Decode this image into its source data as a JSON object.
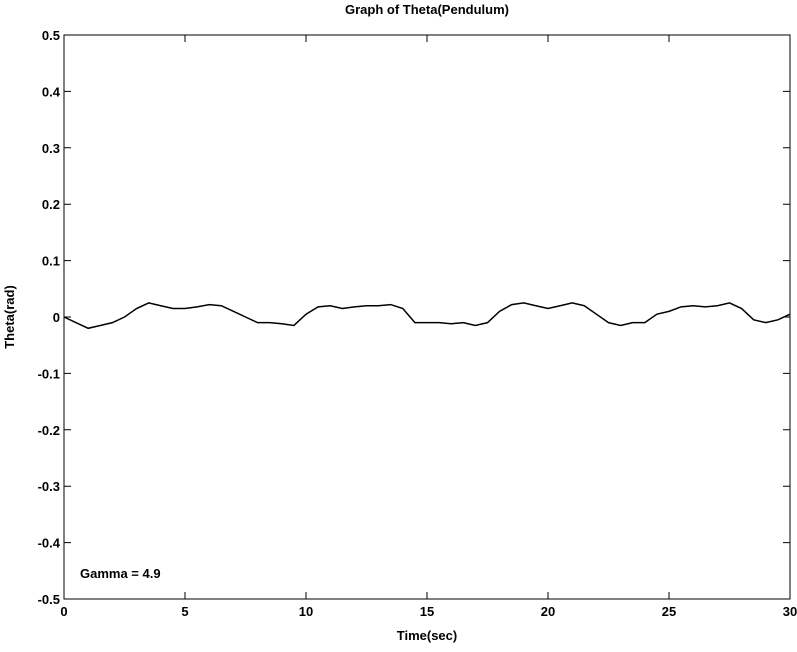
{
  "chart_data": {
    "type": "line",
    "title": "Graph of Theta(Pendulum)",
    "x_label": "Time(sec)",
    "y_label": "Theta(rad)",
    "annotation": "Gamma = 4.9",
    "x": [
      0,
      0.5,
      1,
      1.5,
      2,
      2.5,
      3,
      3.5,
      4,
      4.5,
      5,
      5.5,
      6,
      6.5,
      7,
      7.5,
      8,
      8.5,
      9,
      9.5,
      10,
      10.5,
      11,
      11.5,
      12,
      12.5,
      13,
      13.5,
      14,
      14.5,
      15,
      15.5,
      16,
      16.5,
      17,
      17.5,
      18,
      18.5,
      19,
      19.5,
      20,
      20.5,
      21,
      21.5,
      22,
      22.5,
      23,
      23.5,
      24,
      24.5,
      25,
      25.5,
      26,
      26.5,
      27,
      27.5,
      28,
      28.5,
      29,
      29.5,
      30
    ],
    "values": [
      0,
      -0.01,
      -0.02,
      -0.015,
      -0.01,
      0,
      0.015,
      0.025,
      0.02,
      0.015,
      0.015,
      0.018,
      0.022,
      0.02,
      0.01,
      0,
      -0.01,
      -0.01,
      -0.012,
      -0.015,
      0.005,
      0.018,
      0.02,
      0.015,
      0.018,
      0.02,
      0.02,
      0.022,
      0.015,
      -0.01,
      -0.01,
      -0.01,
      -0.012,
      -0.01,
      -0.015,
      -0.01,
      0.01,
      0.022,
      0.025,
      0.02,
      0.015,
      0.02,
      0.025,
      0.02,
      0.005,
      -0.01,
      -0.015,
      -0.01,
      -0.01,
      0.005,
      0.01,
      0.018,
      0.02,
      0.018,
      0.02,
      0.025,
      0.015,
      -0.005,
      -0.01,
      -0.005,
      0.005
    ],
    "color": "#000000",
    "xlim": [
      0,
      30
    ],
    "xticks": [
      0,
      5,
      10,
      15,
      20,
      25,
      30
    ],
    "ylim": [
      -0.5,
      0.5
    ],
    "yticks": [
      -0.5,
      -0.4,
      -0.3,
      -0.2,
      -0.1,
      0,
      0.1,
      0.2,
      0.3,
      0.4,
      0.5
    ]
  }
}
